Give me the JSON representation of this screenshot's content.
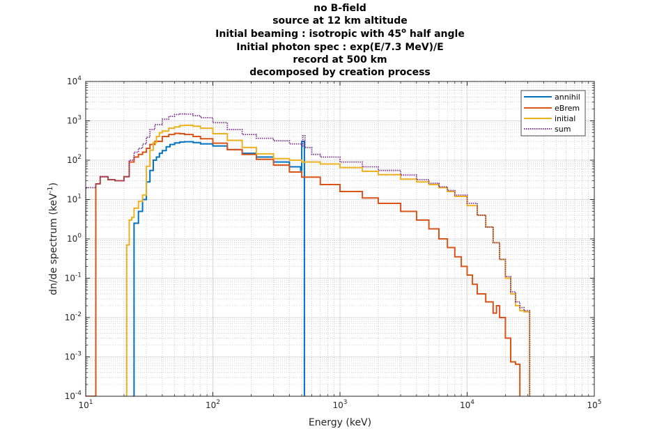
{
  "chart_data": {
    "type": "line",
    "title_lines": [
      "no B-field",
      "source at 12 km altitude",
      "Initial beaming : isotropic with 45",
      "Initial photon spec : exp(E/7.3 MeV)/E",
      "record at 500 km",
      "decomposed by creation process"
    ],
    "title_line3_superscript": "o",
    "title_line3_suffix": " half angle",
    "xlabel": "Energy (keV)",
    "ylabel": "dn/de spectrum (keV",
    "ylabel_superscript": "-1",
    "ylabel_suffix": ")",
    "x_scale": "log",
    "y_scale": "log",
    "xlim": [
      10,
      100000
    ],
    "ylim": [
      0.0001,
      10000
    ],
    "grid": true,
    "minor_grid": true,
    "legend_position": "top-right",
    "x_ticks": [
      {
        "base": "10",
        "exp": "1"
      },
      {
        "base": "10",
        "exp": "2"
      },
      {
        "base": "10",
        "exp": "3"
      },
      {
        "base": "10",
        "exp": "4"
      },
      {
        "base": "10",
        "exp": "5"
      }
    ],
    "y_ticks": [
      {
        "base": "10",
        "exp": "-4"
      },
      {
        "base": "10",
        "exp": "-3"
      },
      {
        "base": "10",
        "exp": "-2"
      },
      {
        "base": "10",
        "exp": "-1"
      },
      {
        "base": "10",
        "exp": "0"
      },
      {
        "base": "10",
        "exp": "1"
      },
      {
        "base": "10",
        "exp": "2"
      },
      {
        "base": "10",
        "exp": "3"
      },
      {
        "base": "10",
        "exp": "4"
      }
    ],
    "series": [
      {
        "name": "annihil",
        "color": "#0072BD",
        "style": "solid",
        "x": [
          23.5,
          24,
          26,
          28,
          30,
          32,
          34,
          36,
          38,
          40,
          43,
          46,
          50,
          55,
          60,
          70,
          80,
          100,
          130,
          170,
          220,
          300,
          400,
          490,
          500,
          510,
          520,
          525
        ],
        "y": [
          0.0001,
          2.5,
          5,
          10,
          28,
          55,
          100,
          120,
          150,
          175,
          220,
          250,
          275,
          290,
          295,
          280,
          260,
          230,
          185,
          150,
          120,
          90,
          68,
          55,
          300,
          300,
          300,
          0.0001
        ]
      },
      {
        "name": "eBrem",
        "color": "#D95319",
        "style": "solid",
        "x": [
          10,
          12,
          13,
          15,
          17,
          20,
          22,
          24,
          26,
          28,
          30,
          32,
          35,
          40,
          45,
          50,
          55,
          60,
          70,
          80,
          100,
          130,
          170,
          220,
          300,
          400,
          500,
          700,
          1000,
          1500,
          2000,
          3000,
          4000,
          5000,
          6000,
          7000,
          8000,
          9000,
          10000,
          11000,
          12000,
          14000,
          16000,
          17000,
          18000,
          20000,
          22000,
          24000,
          25500,
          26000
        ],
        "y": [
          0.0001,
          25,
          38,
          32,
          30,
          38,
          90,
          120,
          140,
          160,
          200,
          250,
          300,
          400,
          450,
          480,
          470,
          450,
          400,
          350,
          270,
          185,
          140,
          105,
          75,
          50,
          37,
          24,
          16,
          11,
          8,
          5,
          3,
          1.8,
          1.0,
          0.6,
          0.35,
          0.2,
          0.12,
          0.07,
          0.04,
          0.025,
          0.013,
          0.02,
          0.01,
          0.003,
          0.00075,
          0.00065,
          0.00065,
          0.0001
        ]
      },
      {
        "name": "initial",
        "color": "#EDB120",
        "style": "solid",
        "x": [
          20.5,
          21,
          22,
          23,
          24,
          26,
          28,
          30,
          32,
          34,
          36,
          38,
          40,
          45,
          50,
          55,
          60,
          70,
          80,
          100,
          130,
          170,
          220,
          300,
          400,
          500,
          700,
          1000,
          1500,
          2000,
          3000,
          4000,
          5000,
          6000,
          7000,
          8000,
          10000,
          12000,
          14000,
          16000,
          18000,
          20000,
          22000,
          24000,
          26000,
          28000,
          29000,
          30000,
          30500,
          31000
        ],
        "y": [
          0.0001,
          0.7,
          3,
          3.5,
          6,
          9,
          13,
          70,
          180,
          280,
          400,
          500,
          550,
          650,
          700,
          760,
          770,
          730,
          650,
          470,
          320,
          210,
          145,
          110,
          100,
          90,
          80,
          65,
          52,
          43,
          33,
          28,
          24,
          20,
          16,
          12,
          7,
          4,
          2,
          0.8,
          0.3,
          0.1,
          0.04,
          0.02,
          0.015,
          0.014,
          0.014,
          0.014,
          0.014,
          0.0001
        ]
      },
      {
        "name": "sum",
        "color": "#7E2F8E",
        "style": "dotted",
        "x": [
          10,
          12,
          13,
          15,
          17,
          20,
          22,
          24,
          26,
          28,
          30,
          32,
          35,
          40,
          45,
          50,
          55,
          60,
          70,
          80,
          100,
          130,
          170,
          220,
          300,
          400,
          500,
          510,
          520,
          530,
          600,
          700,
          1000,
          1500,
          2000,
          3000,
          4000,
          5000,
          6000,
          7000,
          8000,
          10000,
          12000,
          14000,
          16000,
          18000,
          20000,
          22000,
          24000,
          26000,
          28000,
          29000,
          30000,
          30500,
          31000
        ],
        "y": [
          20,
          25,
          38,
          32,
          30,
          38,
          100,
          160,
          200,
          260,
          380,
          600,
          800,
          1100,
          1300,
          1450,
          1500,
          1480,
          1350,
          1200,
          900,
          600,
          450,
          360,
          310,
          260,
          230,
          420,
          420,
          210,
          140,
          120,
          90,
          68,
          55,
          42,
          32,
          26,
          21,
          17,
          13,
          8,
          4,
          2,
          0.8,
          0.3,
          0.11,
          0.045,
          0.025,
          0.018,
          0.015,
          0.015,
          0.015,
          0.015,
          0.0001
        ]
      }
    ]
  }
}
